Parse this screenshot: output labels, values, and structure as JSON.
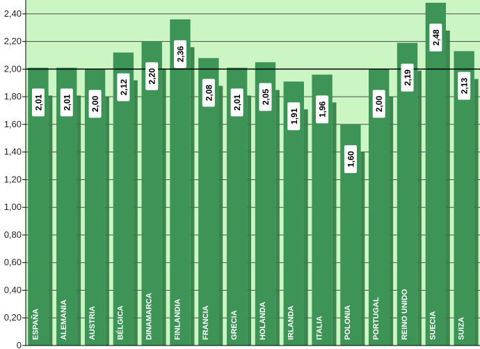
{
  "chart_data": {
    "type": "bar",
    "categories": [
      "ESPAÑA",
      "ALEMANIA",
      "AUSTRIA",
      "BÉLGICA",
      "DINAMARCA",
      "FINLANDIA",
      "FRANCIA",
      "GRECIA",
      "HOLANDA",
      "IRLANDA",
      "ITALIA",
      "POLONIA",
      "PORTUGAL",
      "REINO UNIDO",
      "SUECIA",
      "SUIZA"
    ],
    "values": [
      2.01,
      2.01,
      2.0,
      2.12,
      2.2,
      2.36,
      2.08,
      2.01,
      2.05,
      1.91,
      1.96,
      1.6,
      2.0,
      2.19,
      2.48,
      2.13
    ],
    "value_labels": [
      "2,01",
      "2,01",
      "2,00",
      "2,12",
      "2,20",
      "2,36",
      "2,08",
      "2,01",
      "2,05",
      "1,91",
      "1,96",
      "1,60",
      "2,00",
      "2,19",
      "2,48",
      "2,13"
    ],
    "yticks": [
      0,
      0.2,
      0.4,
      0.6,
      0.8,
      1.0,
      1.2,
      1.4,
      1.6,
      1.8,
      2.0,
      2.2,
      2.4
    ],
    "ytick_labels": [
      "0",
      "0,20",
      "0,40",
      "0,60",
      "0,80",
      "1,00",
      "1,20",
      "1,40",
      "1,60",
      "1,80",
      "2,00",
      "2,20",
      "2,40"
    ],
    "ylim": [
      0,
      2.5
    ],
    "reference_line": 2.0,
    "grid": true,
    "title": "",
    "xlabel": "",
    "ylabel": "",
    "colors": {
      "plot_bg": "#ccf5c4",
      "bar": "#3e9356",
      "bar_shadow": "#2f7a45",
      "grid": "#4a4a4a",
      "reference": "#000000"
    }
  }
}
